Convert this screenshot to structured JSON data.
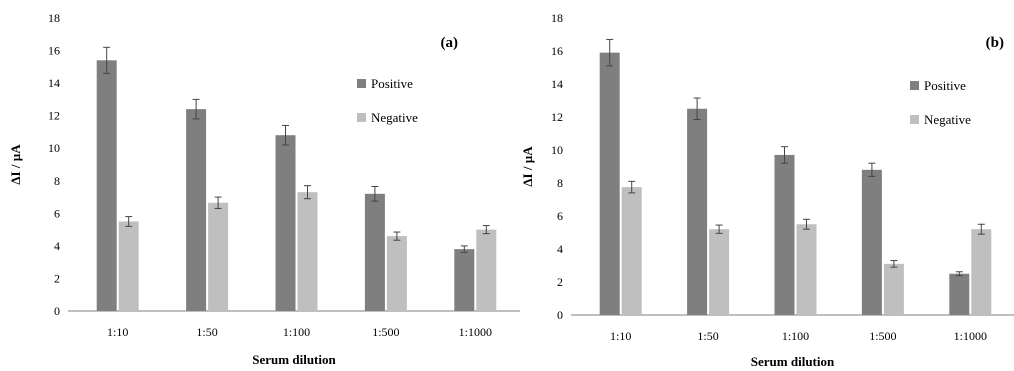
{
  "colors": {
    "positive": "#7f7f7f",
    "negative": "#bfbfbf",
    "axis": "#7f7f7f",
    "errorbar": "#444444"
  },
  "chart_data": [
    {
      "type": "bar",
      "panel_label": "(a)",
      "categories": [
        "1:10",
        "1:50",
        "1:100",
        "1:500",
        "1:1000"
      ],
      "series": [
        {
          "name": "Positive",
          "values": [
            15.4,
            12.4,
            10.8,
            7.2,
            3.8
          ],
          "errors": [
            0.8,
            0.6,
            0.6,
            0.45,
            0.2
          ]
        },
        {
          "name": "Negative",
          "values": [
            5.5,
            6.65,
            7.3,
            4.6,
            5.0
          ],
          "errors": [
            0.3,
            0.35,
            0.4,
            0.25,
            0.25
          ]
        }
      ],
      "ylabel": "ΔI / µA",
      "xlabel": "Serum dilution",
      "ylim": [
        0,
        18
      ],
      "yticks": [
        "0",
        "2",
        "4",
        "6",
        "8",
        "10",
        "12",
        "14",
        "16",
        "18"
      ],
      "grid": false,
      "legend": "right"
    },
    {
      "type": "bar",
      "panel_label": "(b)",
      "categories": [
        "1:10",
        "1:50",
        "1:100",
        "1:500",
        "1:1000"
      ],
      "series": [
        {
          "name": "Positive",
          "values": [
            15.9,
            12.5,
            9.7,
            8.8,
            2.5
          ],
          "errors": [
            0.8,
            0.65,
            0.5,
            0.4,
            0.12
          ]
        },
        {
          "name": "Negative",
          "values": [
            7.75,
            5.2,
            5.5,
            3.1,
            5.2
          ],
          "errors": [
            0.35,
            0.25,
            0.3,
            0.2,
            0.3
          ]
        }
      ],
      "ylabel": "ΔI / µA",
      "xlabel": "Serum dilution",
      "ylim": [
        0,
        18
      ],
      "yticks": [
        "0",
        "2",
        "4",
        "6",
        "8",
        "10",
        "12",
        "14",
        "16",
        "18"
      ],
      "grid": false,
      "legend": "right"
    }
  ]
}
